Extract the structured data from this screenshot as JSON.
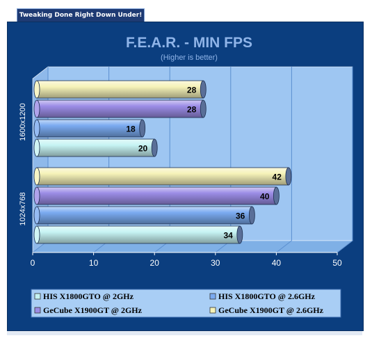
{
  "header": {
    "tagline": "Tweaking Done Right Down Under!"
  },
  "colors": {
    "panel_bg": "#0b3e7f",
    "plot_bg": "#9ec6f2",
    "grid": "#5b8fd0",
    "title": "#8fb4e8",
    "axis_text": "#ffffff",
    "legend_bg": "#a9cef5"
  },
  "chart_data": {
    "type": "bar",
    "orientation": "horizontal",
    "title": "F.E.A.R. - MIN FPS",
    "subtitle": "(Higher is better)",
    "xlabel": "",
    "ylabel": "",
    "categories": [
      "1600x1200",
      "1024x768"
    ],
    "xlim": [
      0,
      50
    ],
    "xticks": [
      0,
      10,
      20,
      30,
      40,
      50
    ],
    "grid": true,
    "legend_position": "bottom",
    "series": [
      {
        "name": "HIS X1800GTO @ 2GHz",
        "color": "#c6f3f3",
        "values": [
          20,
          34
        ]
      },
      {
        "name": "HIS X1800GTO @ 2.6GHz",
        "color": "#7aaaf0",
        "values": [
          18,
          36
        ]
      },
      {
        "name": "GeCube X1900GT @ 2GHz",
        "color": "#9b8ce6",
        "values": [
          28,
          40
        ]
      },
      {
        "name": "GeCube X1900GT @ 2.6GHz",
        "color": "#f5f2b8",
        "values": [
          28,
          42
        ]
      }
    ]
  }
}
